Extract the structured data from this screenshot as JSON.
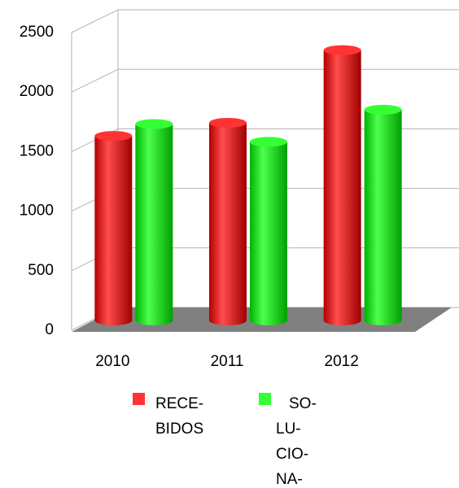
{
  "chart_data": {
    "type": "bar3d",
    "categories": [
      "2010",
      "2011",
      "2012"
    ],
    "series": [
      {
        "name": [
          "RECE-",
          "BIDOS"
        ],
        "color": "#ff3333",
        "values": [
          1550,
          1660,
          2270
        ]
      },
      {
        "name": [
          "SO-",
          "LU-",
          "CIO-",
          "NA-"
        ],
        "color": "#33ff33",
        "values": [
          1650,
          1500,
          1770
        ]
      }
    ],
    "ylim": [
      0,
      2500
    ],
    "yticks": [
      0,
      500,
      1000,
      1500,
      2000,
      2500
    ],
    "grid": true
  }
}
